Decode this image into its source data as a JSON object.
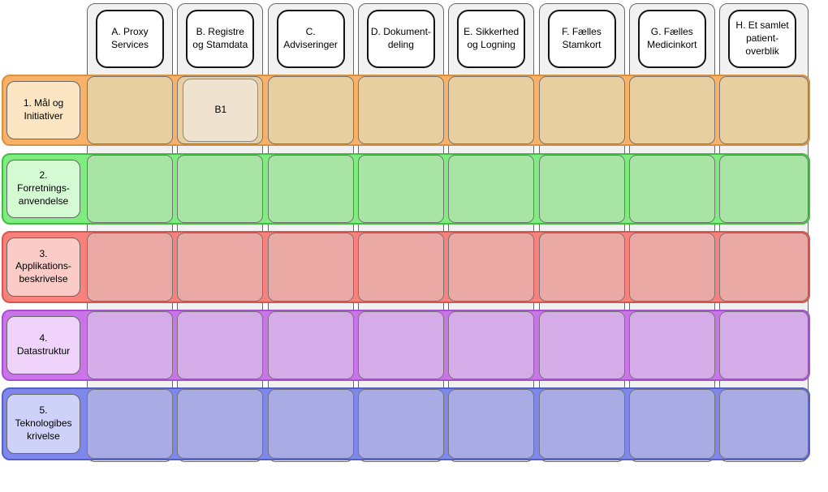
{
  "diagram": {
    "type": "matrix-architecture-diagram",
    "columns": [
      {
        "id": "A",
        "label": "A. Proxy\nServices"
      },
      {
        "id": "B",
        "label": "B. Registre\nog Stamdata"
      },
      {
        "id": "C",
        "label": "C.\nAdviseringer"
      },
      {
        "id": "D",
        "label": "D. Dokument-\ndeling"
      },
      {
        "id": "E",
        "label": "E. Sikkerhed\nog Logning"
      },
      {
        "id": "F",
        "label": "F. Fælles\nStamkort"
      },
      {
        "id": "G",
        "label": "G. Fælles\nMedicinkort"
      },
      {
        "id": "H",
        "label": "H. Et samlet\npatient-\noverblik"
      }
    ],
    "rows": [
      {
        "id": "1",
        "label": "1. Mål og\nInitiativer",
        "colors": {
          "band": "#F8B166",
          "border": "#D8913E",
          "cell": "#E8CFA0",
          "label_fill": "#FBE5C3"
        }
      },
      {
        "id": "2",
        "label": "2.\nForretnings-\nanvendelse",
        "colors": {
          "band": "#7EEC7E",
          "border": "#41BE41",
          "cell": "#A8E5A4",
          "label_fill": "#D3FAD3"
        }
      },
      {
        "id": "3",
        "label": "3.\nApplikations-\nbeskrivelse",
        "colors": {
          "band": "#F8827B",
          "border": "#D8564D",
          "cell": "#EBA9A6",
          "label_fill": "#FACBC7"
        }
      },
      {
        "id": "4",
        "label": "4.\nDatastruktur",
        "colors": {
          "band": "#CB74E9",
          "border": "#A74FD4",
          "cell": "#D5ACE8",
          "label_fill": "#EFD3FA"
        }
      },
      {
        "id": "5",
        "label": "5.\nTeknologibes\nkrivelse",
        "colors": {
          "band": "#7E88EC",
          "border": "#5560C6",
          "cell": "#A9ABE4",
          "label_fill": "#CED2F8"
        }
      }
    ],
    "placed_cells": [
      {
        "row_index": 0,
        "col_index": 1,
        "label": "B1",
        "fill": "#EFE2CE"
      }
    ],
    "styles": {
      "column_fill": "#F1F1F1",
      "column_border": "#696969",
      "cell_border": "#757575",
      "header_fill": "#FFFFFF",
      "header_border": "#141414",
      "text_color": "#000000",
      "background": "#FFFFFF"
    }
  }
}
